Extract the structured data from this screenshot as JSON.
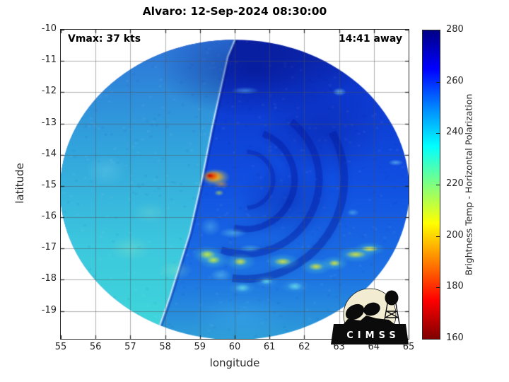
{
  "title": "Alvaro: 12-Sep-2024 08:30:00",
  "annotations": {
    "vmax": "Vmax: 37 kts",
    "time_offset": "14:41 away"
  },
  "axes": {
    "xlabel": "longitude",
    "ylabel": "latitude",
    "x_ticks": [
      55,
      56,
      57,
      58,
      59,
      60,
      61,
      62,
      63,
      64,
      65
    ],
    "y_ticks": [
      -10,
      -11,
      -12,
      -13,
      -14,
      -15,
      -16,
      -17,
      -18,
      -19
    ],
    "x_grid": [
      56,
      57,
      58,
      59,
      60,
      61,
      62,
      63,
      64
    ],
    "y_grid": [
      -11,
      -12,
      -13,
      -14,
      -15,
      -16,
      -17,
      -18,
      -19
    ],
    "grid_color": "rgba(80,80,80,0.45)",
    "spine_color": "#262626"
  },
  "colorbar": {
    "label": "Brightness Temp - Horizontal Polarization",
    "ticks": [
      280,
      260,
      240,
      220,
      200,
      180,
      160
    ],
    "min": 160,
    "max": 280,
    "colormap": "jet-reversed",
    "stops": [
      [
        "#000085",
        0
      ],
      [
        "#0000ff",
        12.5
      ],
      [
        "#0090ff",
        26
      ],
      [
        "#00ffff",
        37.5
      ],
      [
        "#80ff80",
        50
      ],
      [
        "#ffff00",
        62.5
      ],
      [
        "#ff8000",
        75
      ],
      [
        "#ff0000",
        87.5
      ],
      [
        "#7f0000",
        100
      ]
    ]
  },
  "logo": {
    "text": "CIMSS"
  },
  "chart_data": {
    "type": "heatmap",
    "title": "Alvaro: 12-Sep-2024 08:30:00",
    "storm": {
      "name": "Alvaro",
      "datetime": "12-Sep-2024 08:30:00",
      "vmax_kts": 37,
      "observation_offset": "14:41 away"
    },
    "value_field": "Brightness Temp - Horizontal Polarization",
    "value_range": [
      160,
      280
    ],
    "axes": {
      "xlim": [
        55,
        65
      ],
      "ylim": [
        -19.89,
        -10
      ]
    },
    "swath": {
      "ellipse": {
        "center": [
          60.0,
          -15.12
        ],
        "rx": 5.02,
        "ry": 4.8
      },
      "east_gradient": [
        [
          0,
          "#0a1f9e"
        ],
        [
          0.2,
          "#0d38cf"
        ],
        [
          0.5,
          "#1150e2"
        ],
        [
          0.8,
          "#1d74e4"
        ],
        [
          1,
          "#2f9fd8"
        ]
      ],
      "west_gradient": [
        [
          0,
          "#2c6fd8"
        ],
        [
          0.35,
          "#31a0dc"
        ],
        [
          0.7,
          "#3cc8de"
        ],
        [
          1,
          "#3fd8da"
        ]
      ],
      "seam": [
        [
          60.05,
          -10.2
        ],
        [
          59.8,
          -10.86
        ],
        [
          59.35,
          -13.12
        ],
        [
          59.07,
          -14.71
        ],
        [
          58.7,
          -16.52
        ],
        [
          58.13,
          -18.55
        ],
        [
          57.83,
          -19.5
        ]
      ],
      "seam_glow": "rgba(140,205,240,0.45)",
      "seam_line": "rgba(225,245,255,0.85)",
      "seam_shadow": "rgba(8,25,140,0.35)",
      "arcs": [
        [
          60.3,
          -14.8,
          0.81,
          -1.5,
          1.5,
          6,
          "rgba(5,25,160,0.35)"
        ],
        [
          60.3,
          -14.8,
          1.42,
          -1.2,
          1.8,
          9,
          "rgba(5,25,160,0.40)"
        ],
        [
          60.3,
          -14.8,
          2.13,
          -0.9,
          1.9,
          10,
          "rgba(5,25,160,0.38)"
        ],
        [
          60.3,
          -14.8,
          2.85,
          -0.5,
          1.7,
          11,
          "rgba(4,20,150,0.35)"
        ]
      ],
      "blobs": [
        [
          60.6,
          -11.3,
          2.8,
          1.5,
          "rgba(4,12,130,0.50)"
        ],
        [
          62.5,
          -13.2,
          1.8,
          1.5,
          "rgba(6,20,150,0.35)"
        ],
        [
          61.5,
          -15.5,
          1.5,
          1.2,
          "rgba(6,20,150,0.30)"
        ],
        [
          57.0,
          -17.0,
          0.6,
          0.4,
          "rgba(150,230,190,0.30)"
        ],
        [
          57.55,
          -15.85,
          0.5,
          0.35,
          "rgba(150,230,200,0.22)"
        ],
        [
          58.3,
          -17.7,
          0.5,
          0.3,
          "rgba(160,235,190,0.28)"
        ],
        [
          56.3,
          -14.5,
          0.6,
          0.5,
          "rgba(120,215,235,0.30)"
        ],
        [
          60.2,
          -19.2,
          1.4,
          0.7,
          "rgba(60,170,235,0.45)"
        ],
        [
          59.95,
          -16.5,
          0.4,
          0.16,
          "rgba(120,228,238,0.45)"
        ],
        [
          60.45,
          -17.0,
          0.32,
          0.13,
          "rgba(120,228,238,0.40)"
        ],
        [
          59.6,
          -17.85,
          0.3,
          0.2,
          "rgba(120,228,238,0.40)"
        ],
        [
          59.3,
          -16.3,
          0.3,
          0.3,
          "rgba(120,228,238,0.35)"
        ],
        [
          63.01,
          -11.99,
          0.2,
          0.13,
          "rgba(130,225,245,0.65)"
        ],
        [
          64.63,
          -14.25,
          0.22,
          0.1,
          "rgba(130,225,245,0.55)"
        ],
        [
          64.55,
          -11.15,
          0.3,
          0.1,
          "rgba(140,230,250,0.70)"
        ],
        [
          63.4,
          -15.85,
          0.18,
          0.12,
          "rgba(110,215,240,0.45)"
        ],
        [
          60.3,
          -11.95,
          0.4,
          0.12,
          "rgba(90,180,245,0.55)"
        ],
        [
          60.22,
          -18.26,
          0.4,
          0.22,
          "rgba(80,190,235,0.40)"
        ],
        [
          60.91,
          -18.05,
          0.36,
          0.2,
          "rgba(80,190,235,0.40)"
        ],
        [
          61.73,
          -18.21,
          0.4,
          0.22,
          "rgba(80,190,235,0.40)"
        ],
        [
          60.22,
          -18.26,
          0.22,
          0.13,
          "rgba(110,230,235,0.70)"
        ],
        [
          60.91,
          -18.05,
          0.18,
          0.1,
          "rgba(110,230,235,0.70)"
        ],
        [
          61.73,
          -18.21,
          0.22,
          0.13,
          "rgba(110,230,235,0.70)"
        ],
        [
          59.21,
          -17.19,
          0.45,
          0.28,
          "rgba(90,220,200,0.50)"
        ],
        [
          59.39,
          -17.37,
          0.45,
          0.28,
          "rgba(90,220,200,0.50)"
        ],
        [
          60.16,
          -17.42,
          0.45,
          0.28,
          "rgba(90,220,200,0.50)"
        ],
        [
          61.38,
          -17.42,
          0.5,
          0.26,
          "rgba(90,220,200,0.50)"
        ],
        [
          62.34,
          -17.58,
          0.45,
          0.26,
          "rgba(90,220,200,0.50)"
        ],
        [
          62.87,
          -17.47,
          0.4,
          0.24,
          "rgba(90,220,200,0.50)"
        ],
        [
          63.48,
          -17.19,
          0.55,
          0.26,
          "rgba(90,220,200,0.50)"
        ],
        [
          63.88,
          -17.01,
          0.45,
          0.22,
          "rgba(90,220,200,0.50)"
        ],
        [
          59.21,
          -17.19,
          0.24,
          0.15,
          "rgba(200,235,60,0.90)"
        ],
        [
          59.39,
          -17.37,
          0.2,
          0.13,
          "rgba(200,235,60,0.90)"
        ],
        [
          60.16,
          -17.42,
          0.2,
          0.13,
          "rgba(225,230,45,0.85)"
        ],
        [
          61.38,
          -17.42,
          0.25,
          0.12,
          "rgba(225,230,45,0.85)"
        ],
        [
          62.34,
          -17.58,
          0.22,
          0.12,
          "rgba(225,230,45,0.85)"
        ],
        [
          62.87,
          -17.47,
          0.18,
          0.11,
          "rgba(225,230,45,0.85)"
        ],
        [
          63.48,
          -17.19,
          0.3,
          0.12,
          "rgba(225,230,45,0.85)"
        ],
        [
          63.88,
          -17.01,
          0.25,
          0.1,
          "rgba(245,240,60,0.95)"
        ],
        [
          59.55,
          -15.22,
          0.14,
          0.1,
          "rgba(200,230,70,0.65)"
        ],
        [
          59.62,
          -14.95,
          0.22,
          0.12,
          "rgba(255,160,20,0.50)"
        ],
        [
          59.45,
          -14.72,
          0.42,
          0.28,
          "rgba(255,225,40,0.80)"
        ],
        [
          59.4,
          -14.7,
          0.3,
          0.2,
          "rgba(255,150,0,0.90)"
        ],
        [
          59.33,
          -14.68,
          0.2,
          0.14,
          "rgba(230,40,0,0.95)"
        ],
        [
          59.28,
          -14.67,
          0.1,
          0.07,
          "rgba(185,10,0,0.95)"
        ]
      ]
    }
  }
}
